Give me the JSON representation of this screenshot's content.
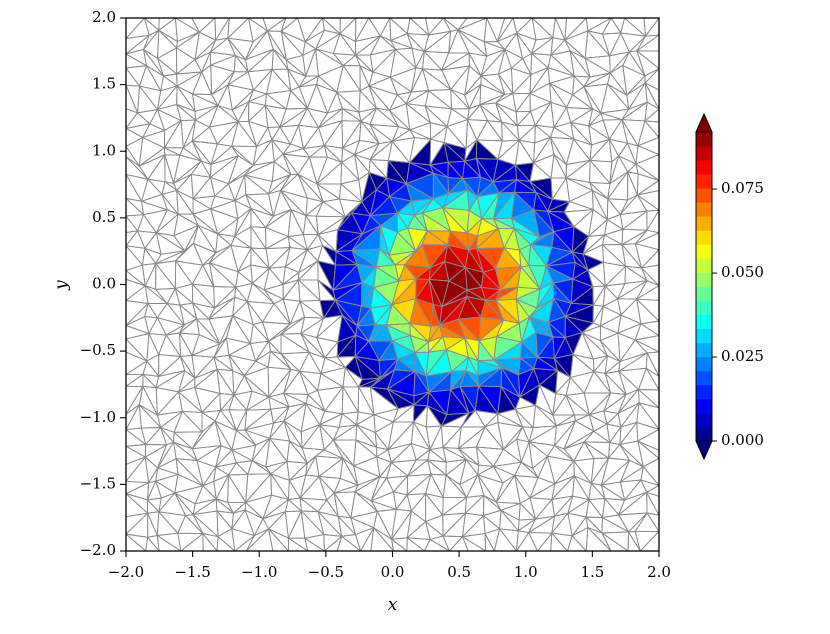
{
  "chart_data": {
    "type": "tricontourf",
    "xlabel": "x",
    "ylabel": "y",
    "xlim": [
      -2.0,
      2.0
    ],
    "ylim": [
      -2.0,
      2.0
    ],
    "x_ticks": [
      "−2.0",
      "−1.5",
      "−1.0",
      "−0.5",
      "0.0",
      "0.5",
      "1.0",
      "1.5",
      "2.0"
    ],
    "y_ticks": [
      "−2.0",
      "−1.5",
      "−1.0",
      "−0.5",
      "0.0",
      "0.5",
      "1.0",
      "1.5",
      "2.0"
    ],
    "mesh": "unstructured triangular mesh covering the full square domain",
    "mesh_edge_color": "#8a8a8a",
    "field_center": [
      0.5,
      0.0
    ],
    "field_peak": 0.092,
    "field_extent_radius": 1.1,
    "colorbar": {
      "colormap": "jet",
      "min": 0.0,
      "max": 0.092,
      "extend": "both",
      "ticks": [
        0.0,
        0.025,
        0.05,
        0.075
      ],
      "tick_labels": [
        "0.000",
        "0.025",
        "0.050",
        "0.075"
      ],
      "levels": 22
    },
    "grid": false,
    "legend": "none"
  }
}
